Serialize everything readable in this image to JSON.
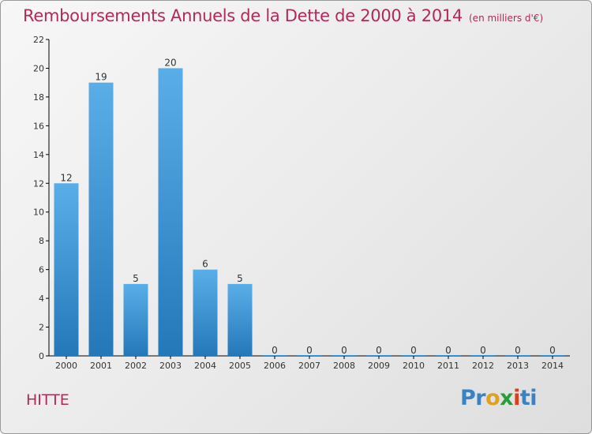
{
  "title": "Remboursements Annuels de la Dette de 2000 à 2014",
  "unit": "(en milliers d'€)",
  "town": "HITTE",
  "logo": "Proxiti",
  "colors": {
    "title": "#b02a5a",
    "bar_top": "#5aaee8",
    "bar_bottom": "#2478b8",
    "axis": "#000000"
  },
  "chart_data": {
    "type": "bar",
    "categories": [
      "2000",
      "2001",
      "2002",
      "2003",
      "2004",
      "2005",
      "2006",
      "2007",
      "2008",
      "2009",
      "2010",
      "2011",
      "2012",
      "2013",
      "2014"
    ],
    "values": [
      12,
      19,
      5,
      20,
      6,
      5,
      0,
      0,
      0,
      0,
      0,
      0,
      0,
      0,
      0
    ],
    "data_labels": [
      "12",
      "19",
      "5",
      "20",
      "6",
      "5",
      "0",
      "0",
      "0",
      "0",
      "0",
      "0",
      "0",
      "0",
      "0"
    ],
    "title": "Remboursements Annuels de la Dette de 2000 à 2014",
    "xlabel": "",
    "ylabel": "",
    "ylim": [
      0,
      22
    ],
    "yticks": [
      0,
      2,
      4,
      6,
      8,
      10,
      12,
      14,
      16,
      18,
      20,
      22
    ],
    "grid": false,
    "legend": "none"
  }
}
